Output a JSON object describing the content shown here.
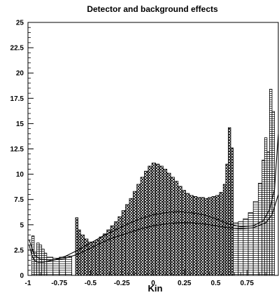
{
  "chart_data": {
    "type": "bar",
    "title": "Detector and background effects",
    "xlabel": "Kin",
    "ylabel": "",
    "xlim": [
      -1,
      1
    ],
    "ylim": [
      0,
      25
    ],
    "x_ticks": [
      "-1",
      "-0.75",
      "-0.5",
      "-0.25",
      "0",
      "0.25",
      "0.5",
      "0.75"
    ],
    "y_ticks": [
      "0",
      "2.5",
      "5",
      "7.5",
      "10",
      "12.5",
      "15",
      "17.5",
      "20",
      "22.5",
      "25"
    ],
    "grid": false,
    "legend": "none",
    "series": [
      {
        "fill": "crosshatch",
        "bins": [
          [
            -0.62,
            -0.6,
            5.7
          ],
          [
            -0.6,
            -0.58,
            4.5
          ],
          [
            -0.58,
            -0.55,
            4.0
          ],
          [
            -0.55,
            -0.52,
            3.6
          ],
          [
            -0.52,
            -0.49,
            3.3
          ],
          [
            -0.49,
            -0.46,
            3.3
          ],
          [
            -0.46,
            -0.43,
            3.5
          ],
          [
            -0.43,
            -0.4,
            3.8
          ],
          [
            -0.4,
            -0.37,
            4.1
          ],
          [
            -0.37,
            -0.34,
            4.5
          ],
          [
            -0.34,
            -0.31,
            4.9
          ],
          [
            -0.31,
            -0.28,
            5.3
          ],
          [
            -0.28,
            -0.25,
            5.8
          ],
          [
            -0.25,
            -0.22,
            6.4
          ],
          [
            -0.22,
            -0.19,
            7.0
          ],
          [
            -0.19,
            -0.16,
            7.6
          ],
          [
            -0.16,
            -0.13,
            8.3
          ],
          [
            -0.13,
            -0.1,
            9.0
          ],
          [
            -0.1,
            -0.07,
            9.7
          ],
          [
            -0.07,
            -0.04,
            10.3
          ],
          [
            -0.04,
            -0.01,
            10.8
          ],
          [
            -0.01,
            0.02,
            11.1
          ],
          [
            0.02,
            0.05,
            11.0
          ],
          [
            0.05,
            0.08,
            10.8
          ],
          [
            0.08,
            0.11,
            10.5
          ],
          [
            0.11,
            0.14,
            10.1
          ],
          [
            0.14,
            0.17,
            9.7
          ],
          [
            0.17,
            0.2,
            9.3
          ],
          [
            0.2,
            0.23,
            8.8
          ],
          [
            0.23,
            0.26,
            8.4
          ],
          [
            0.26,
            0.29,
            8.1
          ],
          [
            0.29,
            0.32,
            7.9
          ],
          [
            0.32,
            0.35,
            7.8
          ],
          [
            0.35,
            0.38,
            7.7
          ],
          [
            0.38,
            0.41,
            7.7
          ],
          [
            0.41,
            0.44,
            7.6
          ],
          [
            0.44,
            0.47,
            7.7
          ],
          [
            0.47,
            0.5,
            7.8
          ],
          [
            0.5,
            0.53,
            7.9
          ],
          [
            0.53,
            0.56,
            8.2
          ],
          [
            0.56,
            0.58,
            9.0
          ],
          [
            0.58,
            0.6,
            11.0
          ],
          [
            0.6,
            0.62,
            14.6
          ],
          [
            0.62,
            0.64,
            12.6
          ]
        ]
      },
      {
        "fill": "horizontal-lines",
        "bins": [
          [
            -0.97,
            -0.95,
            3.9
          ],
          [
            -0.95,
            -0.93,
            2.3
          ],
          [
            -0.93,
            -0.91,
            3.2
          ],
          [
            -0.91,
            -0.89,
            3.0
          ],
          [
            -0.89,
            -0.87,
            2.6
          ],
          [
            -0.87,
            -0.85,
            2.2
          ],
          [
            -0.85,
            -0.8,
            1.8
          ],
          [
            -0.8,
            -0.75,
            1.7
          ],
          [
            -0.75,
            -0.7,
            1.8
          ],
          [
            -0.7,
            -0.65,
            1.9
          ],
          [
            0.64,
            0.68,
            5.2
          ],
          [
            0.68,
            0.72,
            5.3
          ],
          [
            0.72,
            0.76,
            5.6
          ],
          [
            0.76,
            0.8,
            6.2
          ],
          [
            0.8,
            0.84,
            7.3
          ],
          [
            0.84,
            0.87,
            9.1
          ],
          [
            0.87,
            0.89,
            11.4
          ],
          [
            0.89,
            0.91,
            13.6
          ],
          [
            0.91,
            0.93,
            12.2
          ],
          [
            0.93,
            0.95,
            18.4
          ],
          [
            0.95,
            0.97,
            16.2
          ]
        ]
      }
    ],
    "curves": [
      {
        "x": [
          -0.99,
          -0.97,
          -0.95,
          -0.92,
          -0.88,
          -0.8,
          -0.7,
          -0.6,
          -0.5,
          -0.4,
          -0.3,
          -0.2,
          -0.1,
          0.0,
          0.1,
          0.2,
          0.3,
          0.4,
          0.5,
          0.6,
          0.7,
          0.8,
          0.88,
          0.93,
          0.97,
          1.0
        ],
        "y": [
          3.0,
          2.0,
          1.5,
          1.3,
          1.3,
          1.5,
          1.9,
          2.5,
          3.2,
          3.9,
          4.5,
          5.1,
          5.6,
          6.0,
          6.2,
          6.3,
          6.2,
          6.0,
          5.6,
          5.1,
          4.8,
          4.9,
          5.4,
          6.5,
          8.5,
          14.0
        ]
      },
      {
        "x": [
          -0.99,
          -0.95,
          -0.9,
          -0.8,
          -0.7,
          -0.6,
          -0.5,
          -0.4,
          -0.3,
          -0.2,
          -0.1,
          0.0,
          0.1,
          0.2,
          0.3,
          0.4,
          0.5,
          0.6,
          0.7,
          0.8,
          0.9,
          0.95,
          1.0
        ],
        "y": [
          3.5,
          2.0,
          1.6,
          1.5,
          1.7,
          2.1,
          2.7,
          3.3,
          3.8,
          4.2,
          4.6,
          4.9,
          5.1,
          5.2,
          5.2,
          5.1,
          4.9,
          4.7,
          4.6,
          4.7,
          5.2,
          6.0,
          8.0
        ]
      }
    ]
  }
}
